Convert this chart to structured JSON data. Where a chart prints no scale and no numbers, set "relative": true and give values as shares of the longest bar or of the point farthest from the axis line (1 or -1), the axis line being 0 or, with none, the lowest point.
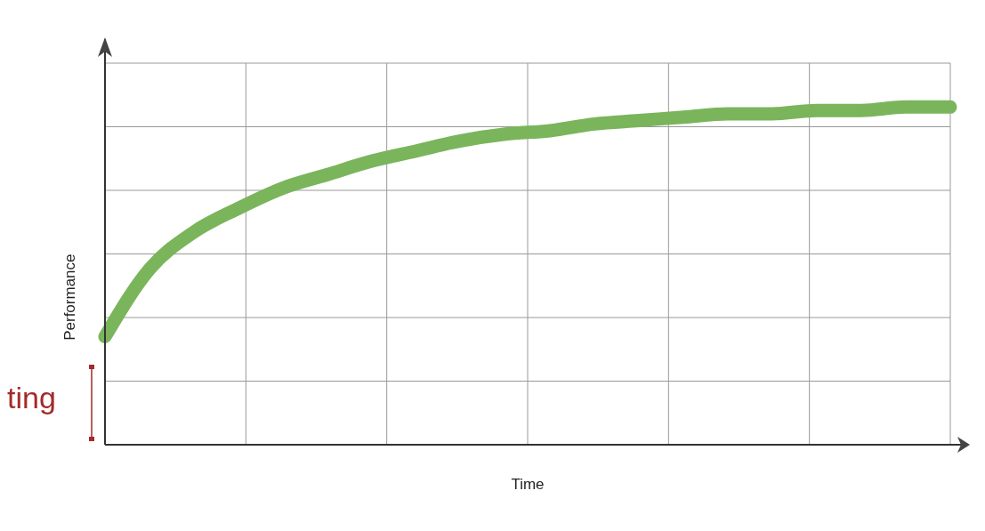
{
  "chart_data": {
    "type": "line",
    "xlabel": "Time",
    "ylabel": "Performance",
    "relative": true,
    "grid": true,
    "categories": [
      null,
      null,
      null,
      null,
      null,
      null,
      null,
      null,
      null,
      null,
      null,
      null,
      null,
      null,
      null,
      null,
      null,
      null,
      null,
      null
    ],
    "series": [
      {
        "color": "#7ab55c",
        "values": [
          0.32,
          0.52,
          0.63,
          0.7,
          0.76,
          0.8,
          0.84,
          0.87,
          0.9,
          0.92,
          0.93,
          0.95,
          0.96,
          0.97,
          0.98,
          0.98,
          0.99,
          0.99,
          1,
          1
        ]
      }
    ],
    "annotations": [
      "ting"
    ]
  }
}
